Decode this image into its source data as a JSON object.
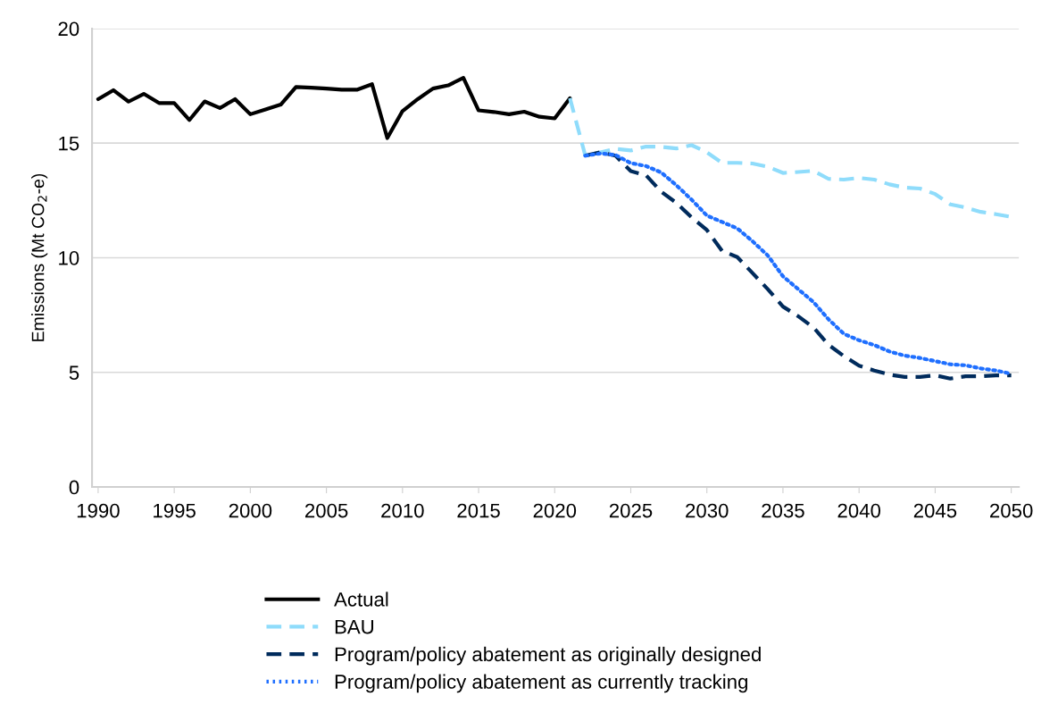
{
  "chart_data": {
    "type": "line",
    "ylabel": "Emissions (Mt CO$_{2}$-e)",
    "xlim": [
      1989.6,
      2050.5
    ],
    "xticks": [
      1990,
      1995,
      2000,
      2005,
      2010,
      2015,
      2020,
      2025,
      2030,
      2035,
      2040,
      2045,
      2050
    ],
    "ylim": [
      0,
      20
    ],
    "yticks": [
      0,
      5,
      10,
      15,
      20
    ],
    "grid": "y",
    "legend": "bottom",
    "marker": "none",
    "series": [
      {
        "name": "Actual",
        "color": "#000000",
        "line_style": "solid",
        "x": [
          1990,
          1991,
          1992,
          1993,
          1994,
          1995,
          1996,
          1997,
          1998,
          1999,
          2000,
          2001,
          2002,
          2003,
          2004,
          2005,
          2006,
          2007,
          2008,
          2009,
          2010,
          2011,
          2012,
          2013,
          2014,
          2015,
          2016,
          2017,
          2018,
          2019,
          2020,
          2021
        ],
        "values": [
          16.92,
          17.31,
          16.81,
          17.15,
          16.75,
          16.75,
          16.01,
          16.82,
          16.53,
          16.92,
          16.26,
          16.47,
          16.68,
          17.45,
          17.42,
          17.38,
          17.33,
          17.33,
          17.57,
          15.22,
          16.4,
          16.92,
          17.38,
          17.52,
          17.85,
          16.43,
          16.36,
          16.26,
          16.37,
          16.15,
          16.08,
          16.96
        ]
      },
      {
        "name": "BAU",
        "color": "#8fdcfb",
        "line_style": "dashed",
        "x": [
          2021,
          2022,
          2023,
          2024,
          2025,
          2026,
          2027,
          2028,
          2029,
          2030,
          2031,
          2032,
          2033,
          2034,
          2035,
          2036,
          2037,
          2038,
          2039,
          2040,
          2041,
          2042,
          2043,
          2044,
          2045,
          2046,
          2047,
          2048,
          2049,
          2050
        ],
        "values": [
          16.96,
          14.48,
          14.6,
          14.75,
          14.68,
          14.85,
          14.84,
          14.77,
          14.91,
          14.6,
          14.14,
          14.14,
          14.11,
          13.97,
          13.7,
          13.74,
          13.79,
          13.44,
          13.41,
          13.48,
          13.41,
          13.2,
          13.06,
          13.02,
          12.78,
          12.33,
          12.19,
          12.0,
          11.9,
          11.78
        ]
      },
      {
        "name": "Program/policy abatement as originally designed",
        "color": "#002b5c",
        "line_style": "dashed",
        "x": [
          2022,
          2023,
          2024,
          2025,
          2026,
          2027,
          2028,
          2029,
          2030,
          2031,
          2032,
          2033,
          2034,
          2035,
          2036,
          2037,
          2038,
          2039,
          2040,
          2041,
          2042,
          2043,
          2044,
          2045,
          2046,
          2047,
          2048,
          2049,
          2050
        ],
        "values": [
          14.45,
          14.6,
          14.45,
          13.78,
          13.6,
          12.88,
          12.39,
          11.76,
          11.21,
          10.3,
          10.03,
          9.33,
          8.63,
          7.87,
          7.45,
          6.96,
          6.2,
          5.71,
          5.29,
          5.08,
          4.9,
          4.8,
          4.8,
          4.87,
          4.73,
          4.83,
          4.83,
          4.87,
          4.87
        ]
      },
      {
        "name": "Program/policy abatement as currently tracking",
        "color": "#1f6fff",
        "line_style": "dotted",
        "x": [
          2022,
          2023,
          2024,
          2025,
          2026,
          2027,
          2028,
          2029,
          2030,
          2031,
          2032,
          2033,
          2034,
          2035,
          2036,
          2037,
          2038,
          2039,
          2040,
          2041,
          2042,
          2043,
          2044,
          2045,
          2046,
          2047,
          2048,
          2049,
          2050
        ],
        "values": [
          14.45,
          14.55,
          14.48,
          14.13,
          14.0,
          13.72,
          13.16,
          12.53,
          11.84,
          11.56,
          11.28,
          10.72,
          10.1,
          9.19,
          8.63,
          8.07,
          7.31,
          6.68,
          6.4,
          6.19,
          5.91,
          5.73,
          5.63,
          5.49,
          5.35,
          5.31,
          5.17,
          5.08,
          4.94
        ]
      }
    ]
  }
}
